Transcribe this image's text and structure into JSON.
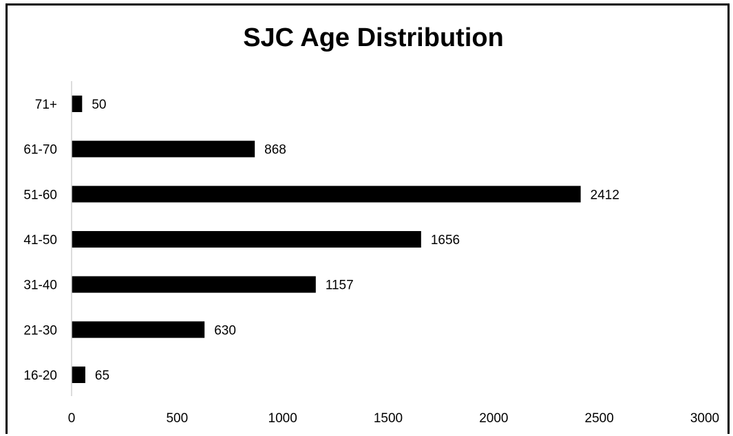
{
  "chart_data": {
    "type": "bar",
    "orientation": "horizontal",
    "title": "SJC Age Distribution",
    "categories": [
      "16-20",
      "21-30",
      "31-40",
      "41-50",
      "51-60",
      "61-70",
      "71+"
    ],
    "values": [
      65,
      630,
      1157,
      1656,
      2412,
      868,
      50
    ],
    "xlim": [
      0,
      3000
    ],
    "xticks": [
      0,
      500,
      1000,
      1500,
      2000,
      2500,
      3000
    ],
    "grid": false,
    "legend": "none",
    "bar_color": "#000000",
    "axis_color": "#d0d0d0"
  }
}
